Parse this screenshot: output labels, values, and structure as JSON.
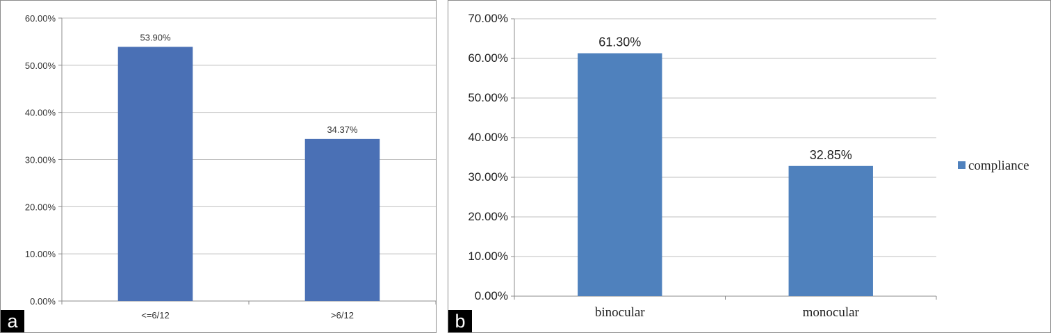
{
  "panels": {
    "a": {
      "letter": "a"
    },
    "b": {
      "letter": "b"
    }
  },
  "colors": {
    "bar_a": "#4a70b5",
    "bar_b": "#4f81bd",
    "grid": "#bfbfbf",
    "axis": "#8c8c8c"
  },
  "chart_data": [
    {
      "type": "bar",
      "title": "",
      "xlabel": "",
      "ylabel": "",
      "categories": [
        "<=6/12",
        ">6/12"
      ],
      "values": [
        53.9,
        34.37
      ],
      "data_labels": [
        "53.90%",
        "34.37%"
      ],
      "ylim": [
        0,
        60
      ],
      "yticks": [
        0,
        10,
        20,
        30,
        40,
        50,
        60
      ],
      "ytick_labels": [
        "0.00%",
        "10.00%",
        "20.00%",
        "30.00%",
        "40.00%",
        "50.00%",
        "60.00%"
      ],
      "grid": true,
      "legend": null
    },
    {
      "type": "bar",
      "title": "",
      "xlabel": "",
      "ylabel": "",
      "categories": [
        "binocular",
        "monocular"
      ],
      "series": [
        {
          "name": "compliance",
          "values": [
            61.3,
            32.85
          ]
        }
      ],
      "data_labels": [
        "61.30%",
        "32.85%"
      ],
      "ylim": [
        0,
        70
      ],
      "yticks": [
        0,
        10,
        20,
        30,
        40,
        50,
        60,
        70
      ],
      "ytick_labels": [
        "0.00%",
        "10.00%",
        "20.00%",
        "30.00%",
        "40.00%",
        "50.00%",
        "60.00%",
        "70.00%"
      ],
      "grid": true,
      "legend": "right"
    }
  ]
}
